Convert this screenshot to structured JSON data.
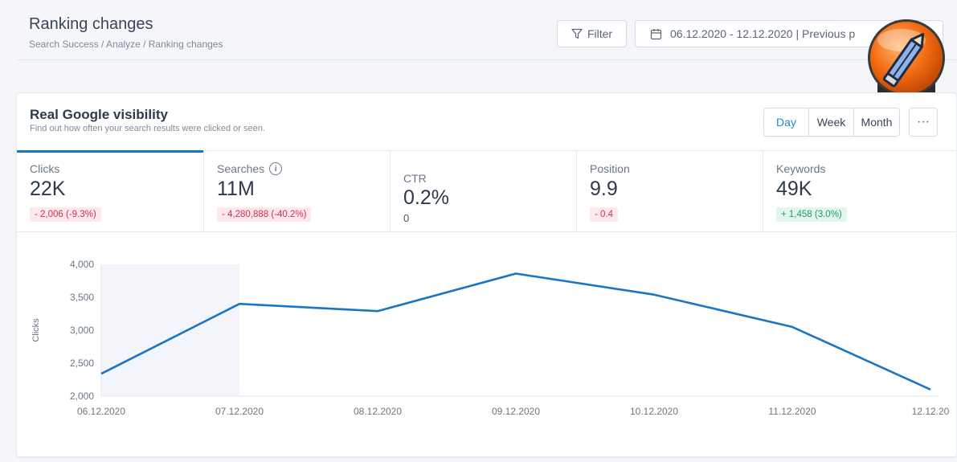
{
  "header": {
    "title": "Ranking changes",
    "breadcrumb": "Search Success / Analyze / Ranking changes",
    "filter_label": "Filter",
    "date_range": "06.12.2020 - 12.12.2020 | Previous p",
    "more_label": "···"
  },
  "card": {
    "title": "Real Google visibility",
    "subtitle": "Find out how often your search results were clicked or seen.",
    "periods": [
      "Day",
      "Week",
      "Month"
    ],
    "selected_period": "Day",
    "more_label": "···"
  },
  "metrics": [
    {
      "label": "Clicks",
      "value": "22K",
      "delta": "- 2,006 (-9.3%)",
      "delta_type": "neg"
    },
    {
      "label": "Searches",
      "value": "11M",
      "delta": "- 4,280,888 (-40.2%)",
      "delta_type": "neg"
    },
    {
      "label": "CTR",
      "value": "0.2%",
      "sub": "0"
    },
    {
      "label": "Position",
      "value": "9.9",
      "delta": "- 0.4",
      "delta_type": "neg"
    },
    {
      "label": "Keywords",
      "value": "49K",
      "delta": "+ 1,458 (3.0%)",
      "delta_type": "pos"
    }
  ],
  "colors": {
    "accent": "#1a76c4",
    "negative": "#d32f4f",
    "positive": "#1f9d63"
  },
  "chart_data": {
    "type": "line",
    "x": [
      "06.12.2020",
      "07.12.2020",
      "08.12.2020",
      "09.12.2020",
      "10.12.2020",
      "11.12.2020",
      "12.12.20"
    ],
    "series": [
      {
        "values": [
          2340,
          3400,
          3290,
          3860,
          3540,
          3050,
          2100
        ]
      }
    ],
    "ylabel": "Clicks",
    "ylim": [
      2000,
      4000
    ],
    "yticks": [
      "4,000",
      "3,500",
      "3,000",
      "2,500",
      "2,000"
    ],
    "ytick_values": [
      4000,
      3500,
      3000,
      2500,
      2000
    ],
    "highlight_range": [
      "06.12.2020",
      "07.12.2020"
    ],
    "grid": false
  }
}
